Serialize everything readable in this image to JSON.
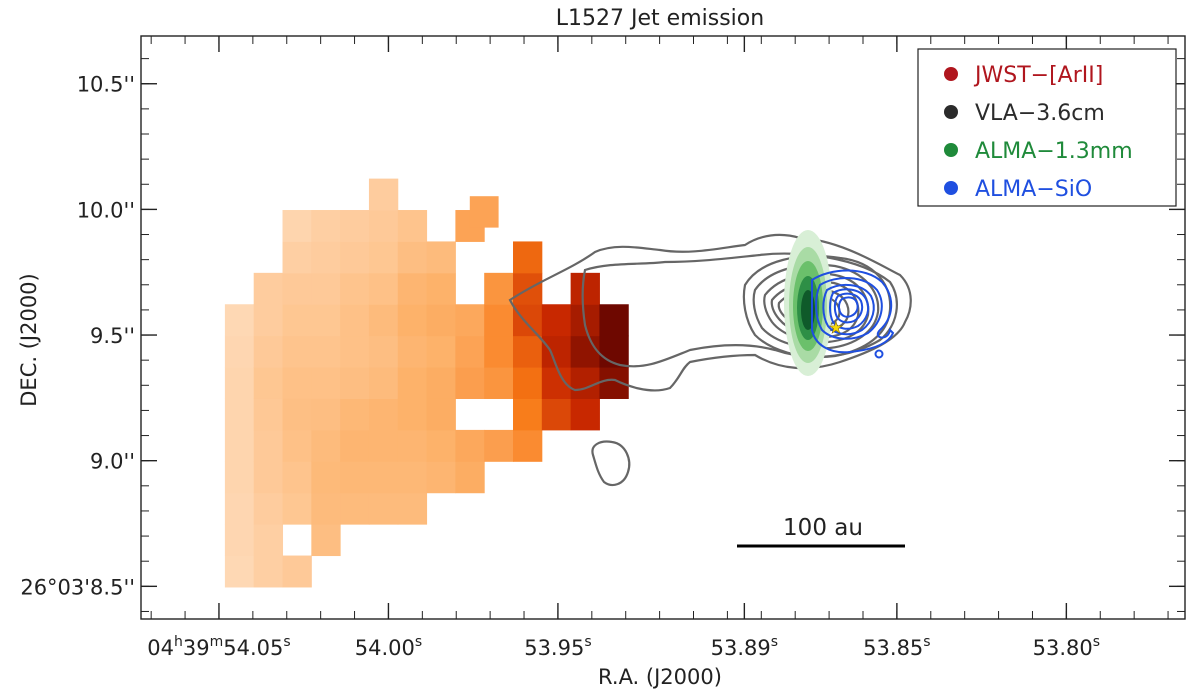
{
  "chart_data": {
    "type": "heatmap",
    "title": "L1527 Jet emission",
    "xlabel": "R.A. (J2000)",
    "ylabel": "DEC. (J2000)",
    "x_ticks": [
      {
        "h": "04",
        "m": "39",
        "s": "54.05",
        "label": "04h39m54.05s",
        "value": 54.05,
        "full": true
      },
      {
        "s": "54.00",
        "label": "54.00s",
        "value": 54.0,
        "full": false
      },
      {
        "s": "53.95",
        "label": "53.95s",
        "value": 53.95,
        "full": false
      },
      {
        "s": "53.89",
        "label": "53.89s",
        "value": 53.895,
        "full": false
      },
      {
        "s": "53.85",
        "label": "53.85s",
        "value": 53.85,
        "full": false
      },
      {
        "s": "53.80",
        "label": "53.80s",
        "value": 53.8,
        "full": false
      }
    ],
    "y_ticks": [
      {
        "label": "10.5''",
        "value": 10.5
      },
      {
        "label": "10.0''",
        "value": 10.0
      },
      {
        "label": "9.5''",
        "value": 9.5
      },
      {
        "label": "9.0''",
        "value": 9.0
      },
      {
        "label": "26°03'8.5''",
        "value": 8.5
      }
    ],
    "xlim": [
      54.073,
      53.765
    ],
    "ylim": [
      8.37,
      10.69
    ],
    "legend": {
      "position": "top-right",
      "entries": [
        {
          "label": "JWST−[ArII]",
          "color": "#b0161e"
        },
        {
          "label": "VLA−3.6cm",
          "color": "#2b2b2b"
        },
        {
          "label": "ALMA−1.3mm",
          "color": "#1f8a3a"
        },
        {
          "label": "ALMA−SiO",
          "color": "#1f4fe0"
        }
      ]
    },
    "scale_bar": {
      "label": "100 au"
    },
    "source_marker": {
      "ra": 53.868,
      "dec": 9.53,
      "color": "#f5d90a"
    },
    "heatmap": {
      "pixel_size": 0.125,
      "x0": 54.044,
      "dx": -0.0085,
      "y0": 8.56,
      "columns": [
        {
          "start": 0,
          "values": [
            0.1,
            0.11,
            0.11,
            0.12,
            0.12,
            0.12,
            0.12,
            0.11,
            0.1
          ]
        },
        {
          "start": 0,
          "values": [
            0.16,
            0.16,
            0.18,
            0.2,
            0.2,
            0.21,
            0.22,
            0.2,
            0.18,
            0.18
          ]
        },
        {
          "start": 0,
          "values": [
            0.2,
            null,
            0.22,
            0.24,
            0.26,
            0.27,
            0.26,
            0.24,
            0.22,
            0.2,
            0.16,
            0.12
          ]
        },
        {
          "start": 1,
          "values": [
            0.28,
            0.3,
            0.31,
            0.3,
            0.28,
            0.26,
            0.24,
            0.22,
            0.2,
            0.18,
            0.16
          ]
        },
        {
          "start": 2,
          "values": [
            0.3,
            0.32,
            0.34,
            0.32,
            0.28,
            0.26,
            0.26,
            0.24,
            0.2,
            0.18
          ]
        },
        {
          "start": 2,
          "values": [
            0.3,
            0.32,
            0.34,
            0.34,
            0.3,
            0.28,
            0.3,
            0.26,
            0.22,
            0.2,
            0.18
          ]
        },
        {
          "start": 2,
          "values": [
            0.3,
            0.32,
            0.34,
            0.36,
            0.36,
            0.34,
            0.36,
            0.34,
            0.28,
            0.24
          ]
        },
        {
          "start": 3,
          "values": [
            0.34,
            0.36,
            0.38,
            0.38,
            0.36,
            0.38,
            0.36,
            0.3
          ]
        },
        {
          "start": 3,
          "values": [
            0.38,
            0.4,
            null,
            0.44,
            0.42,
            0.4,
            null,
            null,
            0.42
          ]
        },
        {
          "start": 4,
          "values": [
            0.44,
            null,
            0.48,
            0.52,
            0.52,
            0.48
          ]
        },
        {
          "start": 4,
          "values": [
            0.52,
            0.58,
            0.62,
            0.66,
            0.72,
            0.7,
            0.64
          ]
        },
        {
          "start": 5,
          "values": [
            0.72,
            0.78,
            0.82,
            0.8
          ]
        },
        {
          "start": 5,
          "values": [
            0.8,
            0.84,
            0.9,
            0.86,
            0.82
          ]
        },
        {
          "start": 6,
          "values": [
            0.92,
            0.96,
            0.96
          ]
        }
      ]
    }
  }
}
